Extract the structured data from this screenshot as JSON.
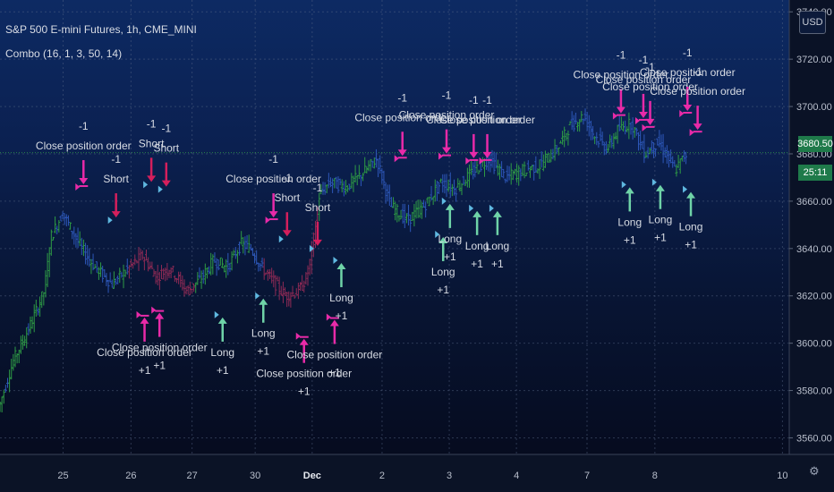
{
  "header": {
    "title": "S&P 500 E-mini Futures, 1h, CME_MINI",
    "indicator": "Combo (16, 1, 3, 50, 14)"
  },
  "price_axis": {
    "currency": "USD",
    "last_price": "3680.50",
    "countdown": "25:11",
    "ticks": [
      "3740.00",
      "3720.00",
      "3700.00",
      "3680.00",
      "3660.00",
      "3640.00",
      "3620.00",
      "3600.00",
      "3580.00",
      "3560.00"
    ]
  },
  "settings_icon": "gear-icon",
  "colors": {
    "bull": "#2e9b45",
    "bear": "#2d57b8",
    "short_zone": "#8e2a55",
    "signal_marker": "#e82aa8",
    "entry_arrow": "#d41f5c",
    "exit_arrow": "#6fd3a8",
    "last_price_badge": "#1f7a4a"
  },
  "chart_data": {
    "type": "candlestick",
    "instrument": "S&P 500 E-mini Futures",
    "interval": "1h",
    "exchange": "CME_MINI",
    "ylim": [
      3553,
      3745
    ],
    "yticks": [
      3740,
      3720,
      3700,
      3680,
      3660,
      3640,
      3620,
      3600,
      3580,
      3560
    ],
    "xticks": [
      {
        "label": "25",
        "x": 0.0
      },
      {
        "label": "26",
        "x": 1.0
      },
      {
        "label": "27",
        "x": 1.9
      },
      {
        "label": "30",
        "x": 2.83
      },
      {
        "label": "Dec",
        "x": 3.67
      },
      {
        "label": "2",
        "x": 4.7
      },
      {
        "label": "3",
        "x": 5.69
      },
      {
        "label": "4",
        "x": 6.68
      },
      {
        "label": "7",
        "x": 7.72
      },
      {
        "label": "8",
        "x": 8.72
      },
      {
        "label": "10",
        "x": 10.6
      }
    ],
    "xlim": [
      -0.93,
      10.7
    ],
    "price_path": [
      [
        -0.93,
        3572
      ],
      [
        -0.7,
        3593
      ],
      [
        -0.45,
        3608
      ],
      [
        -0.25,
        3622
      ],
      [
        -0.15,
        3645
      ],
      [
        0.02,
        3655
      ],
      [
        0.15,
        3648
      ],
      [
        0.3,
        3640
      ],
      [
        0.5,
        3632
      ],
      [
        0.75,
        3625
      ],
      [
        1.0,
        3632
      ],
      [
        1.2,
        3637
      ],
      [
        1.4,
        3628
      ],
      [
        1.6,
        3632
      ],
      [
        1.85,
        3622
      ],
      [
        2.05,
        3627
      ],
      [
        2.25,
        3635
      ],
      [
        2.45,
        3632
      ],
      [
        2.65,
        3642
      ],
      [
        2.8,
        3640
      ],
      [
        2.95,
        3632
      ],
      [
        3.1,
        3627
      ],
      [
        3.3,
        3620
      ],
      [
        3.5,
        3622
      ],
      [
        3.62,
        3628
      ],
      [
        3.7,
        3640
      ],
      [
        3.8,
        3662
      ],
      [
        3.95,
        3668
      ],
      [
        4.2,
        3666
      ],
      [
        4.45,
        3672
      ],
      [
        4.65,
        3678
      ],
      [
        4.85,
        3658
      ],
      [
        5.1,
        3652
      ],
      [
        5.35,
        3658
      ],
      [
        5.6,
        3668
      ],
      [
        5.8,
        3665
      ],
      [
        6.05,
        3672
      ],
      [
        6.3,
        3678
      ],
      [
        6.55,
        3670
      ],
      [
        6.8,
        3673
      ],
      [
        7.05,
        3675
      ],
      [
        7.3,
        3682
      ],
      [
        7.5,
        3692
      ],
      [
        7.7,
        3696
      ],
      [
        7.85,
        3688
      ],
      [
        8.05,
        3682
      ],
      [
        8.2,
        3690
      ],
      [
        8.4,
        3693
      ],
      [
        8.6,
        3680
      ],
      [
        8.8,
        3685
      ],
      [
        9.05,
        3673
      ],
      [
        9.2,
        3680
      ]
    ],
    "last_price": 3680.5,
    "signals": [
      {
        "type": "close",
        "label": "Close position order",
        "qty": "-1",
        "x": 0.3,
        "y": 3666,
        "dir": "down"
      },
      {
        "type": "short",
        "label": "Short",
        "qty": "-1",
        "x": 0.78,
        "y": 3652,
        "dir": "down"
      },
      {
        "type": "short",
        "label": "Short",
        "qty": "-1",
        "x": 1.3,
        "y": 3667,
        "dir": "down"
      },
      {
        "type": "short",
        "label": "Short",
        "qty": "-1",
        "x": 1.52,
        "y": 3665,
        "dir": "down"
      },
      {
        "type": "close",
        "label": "Close position order",
        "qty": "+1",
        "x": 1.2,
        "y": 3612,
        "dir": "up"
      },
      {
        "type": "close",
        "label": "Close position order",
        "qty": "+1",
        "x": 1.42,
        "y": 3614,
        "dir": "up"
      },
      {
        "type": "long",
        "label": "Long",
        "qty": "+1",
        "x": 2.35,
        "y": 3612,
        "dir": "up"
      },
      {
        "type": "long",
        "label": "Long",
        "qty": "+1",
        "x": 2.95,
        "y": 3620,
        "dir": "up"
      },
      {
        "type": "close",
        "label": "Close position order",
        "qty": "-1",
        "x": 3.1,
        "y": 3652,
        "dir": "down"
      },
      {
        "type": "short",
        "label": "Short",
        "qty": "-1",
        "x": 3.3,
        "y": 3644,
        "dir": "down"
      },
      {
        "type": "short",
        "label": "Short",
        "qty": "-1",
        "x": 3.75,
        "y": 3640,
        "dir": "down"
      },
      {
        "type": "close",
        "label": "Close position order",
        "qty": "+1",
        "x": 3.55,
        "y": 3603,
        "dir": "up"
      },
      {
        "type": "close",
        "label": "Close position order",
        "qty": "+1",
        "x": 4.0,
        "y": 3611,
        "dir": "up"
      },
      {
        "type": "long",
        "label": "Long",
        "qty": "+1",
        "x": 4.1,
        "y": 3635,
        "dir": "up"
      },
      {
        "type": "close",
        "label": "Close position order",
        "qty": "-1",
        "x": 5.0,
        "y": 3678,
        "dir": "down"
      },
      {
        "type": "long",
        "label": "Long",
        "qty": "+1",
        "x": 5.6,
        "y": 3646,
        "dir": "up"
      },
      {
        "type": "close",
        "label": "Close position order",
        "qty": "-1",
        "x": 5.65,
        "y": 3679,
        "dir": "down"
      },
      {
        "type": "long",
        "label": "Long",
        "qty": "+1",
        "x": 5.7,
        "y": 3660,
        "dir": "up"
      },
      {
        "type": "close",
        "label": "Close position order",
        "qty": "-1",
        "x": 6.05,
        "y": 3677,
        "dir": "down"
      },
      {
        "type": "close",
        "label": "Close position order",
        "qty": "-1",
        "x": 6.25,
        "y": 3677,
        "dir": "down"
      },
      {
        "type": "long",
        "label": "Long",
        "qty": "+1",
        "x": 6.1,
        "y": 3657,
        "dir": "up"
      },
      {
        "type": "long",
        "label": "Long",
        "qty": "+1",
        "x": 6.4,
        "y": 3657,
        "dir": "up"
      },
      {
        "type": "close",
        "label": "Close position order",
        "qty": "-1",
        "x": 8.22,
        "y": 3696,
        "dir": "down"
      },
      {
        "type": "close",
        "label": "Close position order",
        "qty": "-1",
        "x": 8.55,
        "y": 3694,
        "dir": "down"
      },
      {
        "type": "close",
        "label": "Close position order",
        "qty": "-1",
        "x": 8.65,
        "y": 3691,
        "dir": "down"
      },
      {
        "type": "close",
        "label": "Close position order",
        "qty": "-1",
        "x": 9.2,
        "y": 3697,
        "dir": "down"
      },
      {
        "type": "close",
        "label": "Close position order",
        "qty": "-1",
        "x": 9.35,
        "y": 3689,
        "dir": "down"
      },
      {
        "type": "long",
        "label": "Long",
        "qty": "+1",
        "x": 8.35,
        "y": 3667,
        "dir": "up"
      },
      {
        "type": "long",
        "label": "Long",
        "qty": "+1",
        "x": 8.8,
        "y": 3668,
        "dir": "up"
      },
      {
        "type": "long",
        "label": "Long",
        "qty": "+1",
        "x": 9.25,
        "y": 3665,
        "dir": "up"
      }
    ]
  }
}
